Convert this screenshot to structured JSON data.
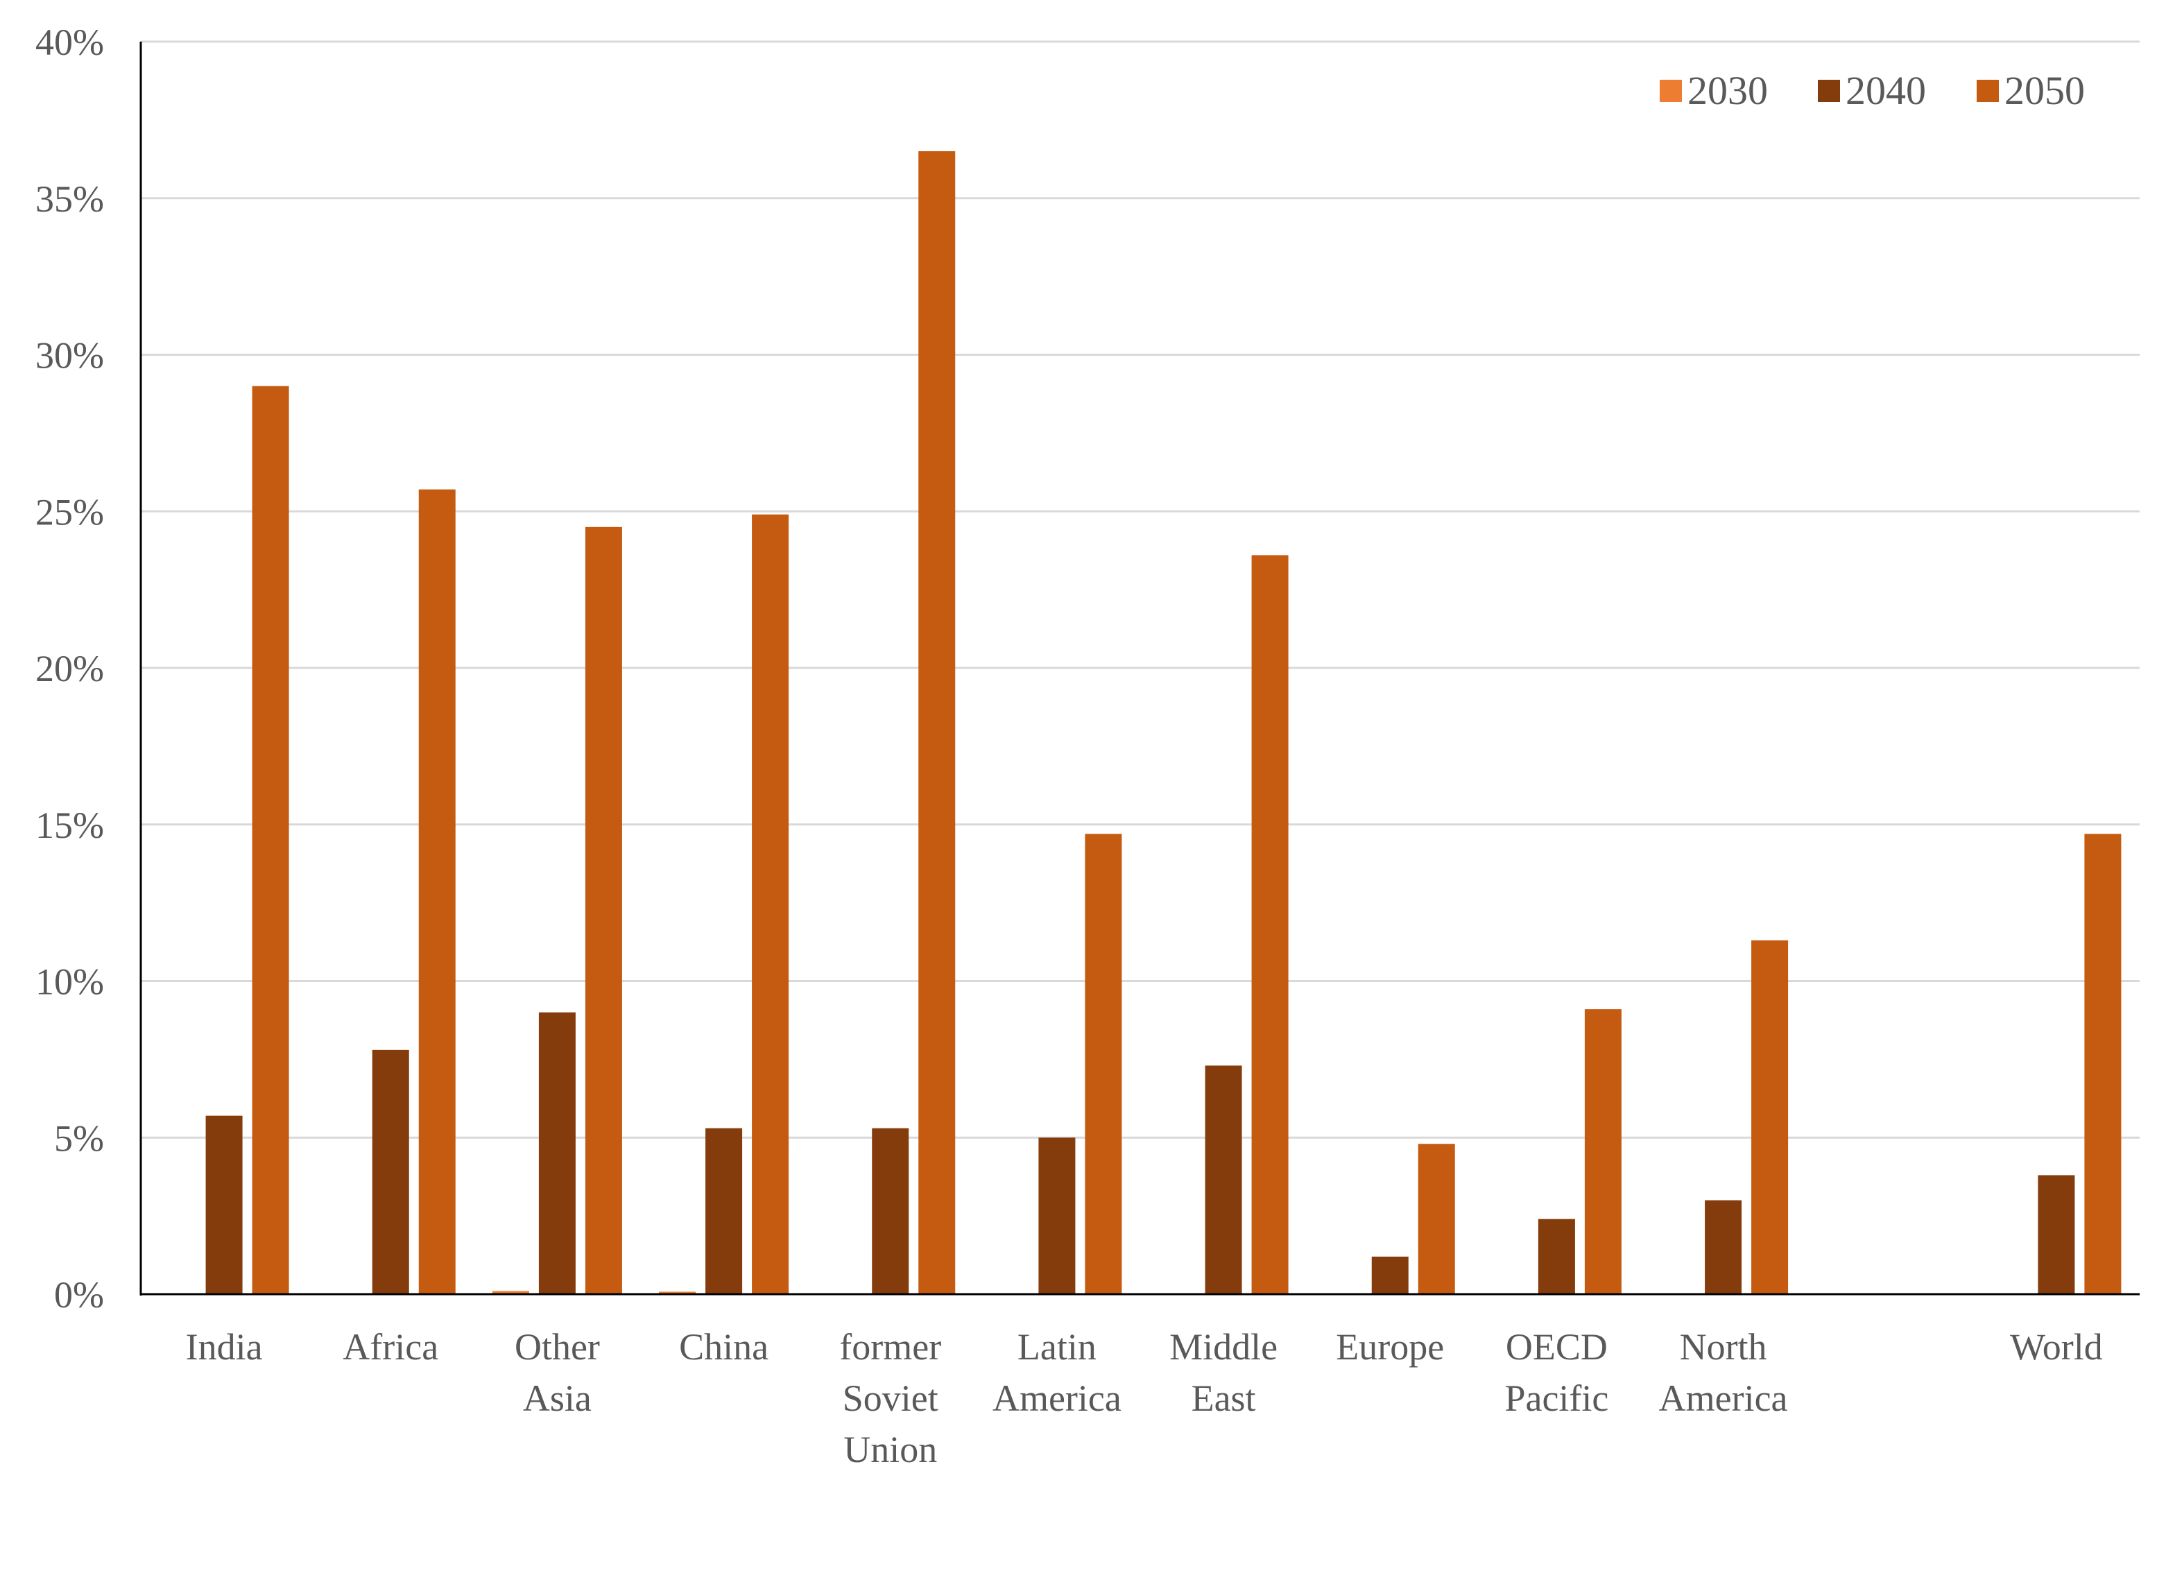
{
  "chart_data": {
    "type": "bar",
    "title": "",
    "xlabel": "",
    "ylabel": "",
    "ylim": [
      0,
      40
    ],
    "y_ticks": [
      0,
      5,
      10,
      15,
      20,
      25,
      30,
      35,
      40
    ],
    "y_tick_labels": [
      "0%",
      "5%",
      "10%",
      "15%",
      "20%",
      "25%",
      "30%",
      "35%",
      "40%"
    ],
    "grid": true,
    "legend_position": "top-right",
    "categories": [
      [
        "India"
      ],
      [
        "Africa"
      ],
      [
        "Other",
        "Asia"
      ],
      [
        "China"
      ],
      [
        "former",
        "Soviet",
        "Union"
      ],
      [
        "Latin",
        "America"
      ],
      [
        "Middle",
        "East"
      ],
      [
        "Europe"
      ],
      [
        "OECD",
        "Pacific"
      ],
      [
        "North",
        "America"
      ],
      [],
      [
        "World"
      ]
    ],
    "series": [
      {
        "name": "2030",
        "color": "#ED7D31",
        "values": [
          0.02,
          0.02,
          0.1,
          0.08,
          0.02,
          0.0,
          0.02,
          0.0,
          0.0,
          0.0,
          null,
          0.0
        ]
      },
      {
        "name": "2040",
        "color": "#843C0C",
        "values": [
          5.7,
          7.8,
          9.0,
          5.3,
          5.3,
          5.0,
          7.3,
          1.2,
          2.4,
          3.0,
          null,
          3.8
        ]
      },
      {
        "name": "2050",
        "color": "#C55A11",
        "values": [
          29.0,
          25.7,
          24.5,
          24.9,
          36.5,
          14.7,
          23.6,
          4.8,
          9.1,
          11.3,
          null,
          14.7
        ]
      }
    ]
  }
}
